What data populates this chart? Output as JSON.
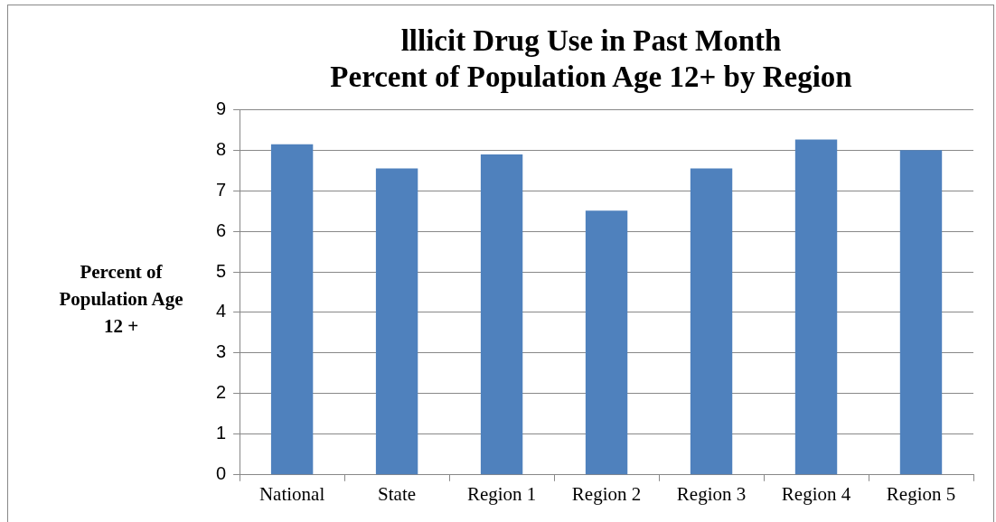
{
  "chart_data": {
    "type": "bar",
    "title": "lllicit Drug Use in Past Month\nPercent of Population Age 12+ by Region",
    "ylabel": "Percent of\nPopulation Age\n12 +",
    "categories": [
      "National",
      "State",
      "Region 1",
      "Region 2",
      "Region 3",
      "Region 4",
      "Region 5"
    ],
    "values": [
      8.14,
      7.55,
      7.89,
      6.51,
      7.55,
      8.26,
      8.0
    ],
    "color": "#4f81bd",
    "ylim": [
      0,
      9
    ],
    "yticks": [
      0,
      1,
      2,
      3,
      4,
      5,
      6,
      7,
      8,
      9
    ],
    "grid": "y",
    "legend": false
  }
}
